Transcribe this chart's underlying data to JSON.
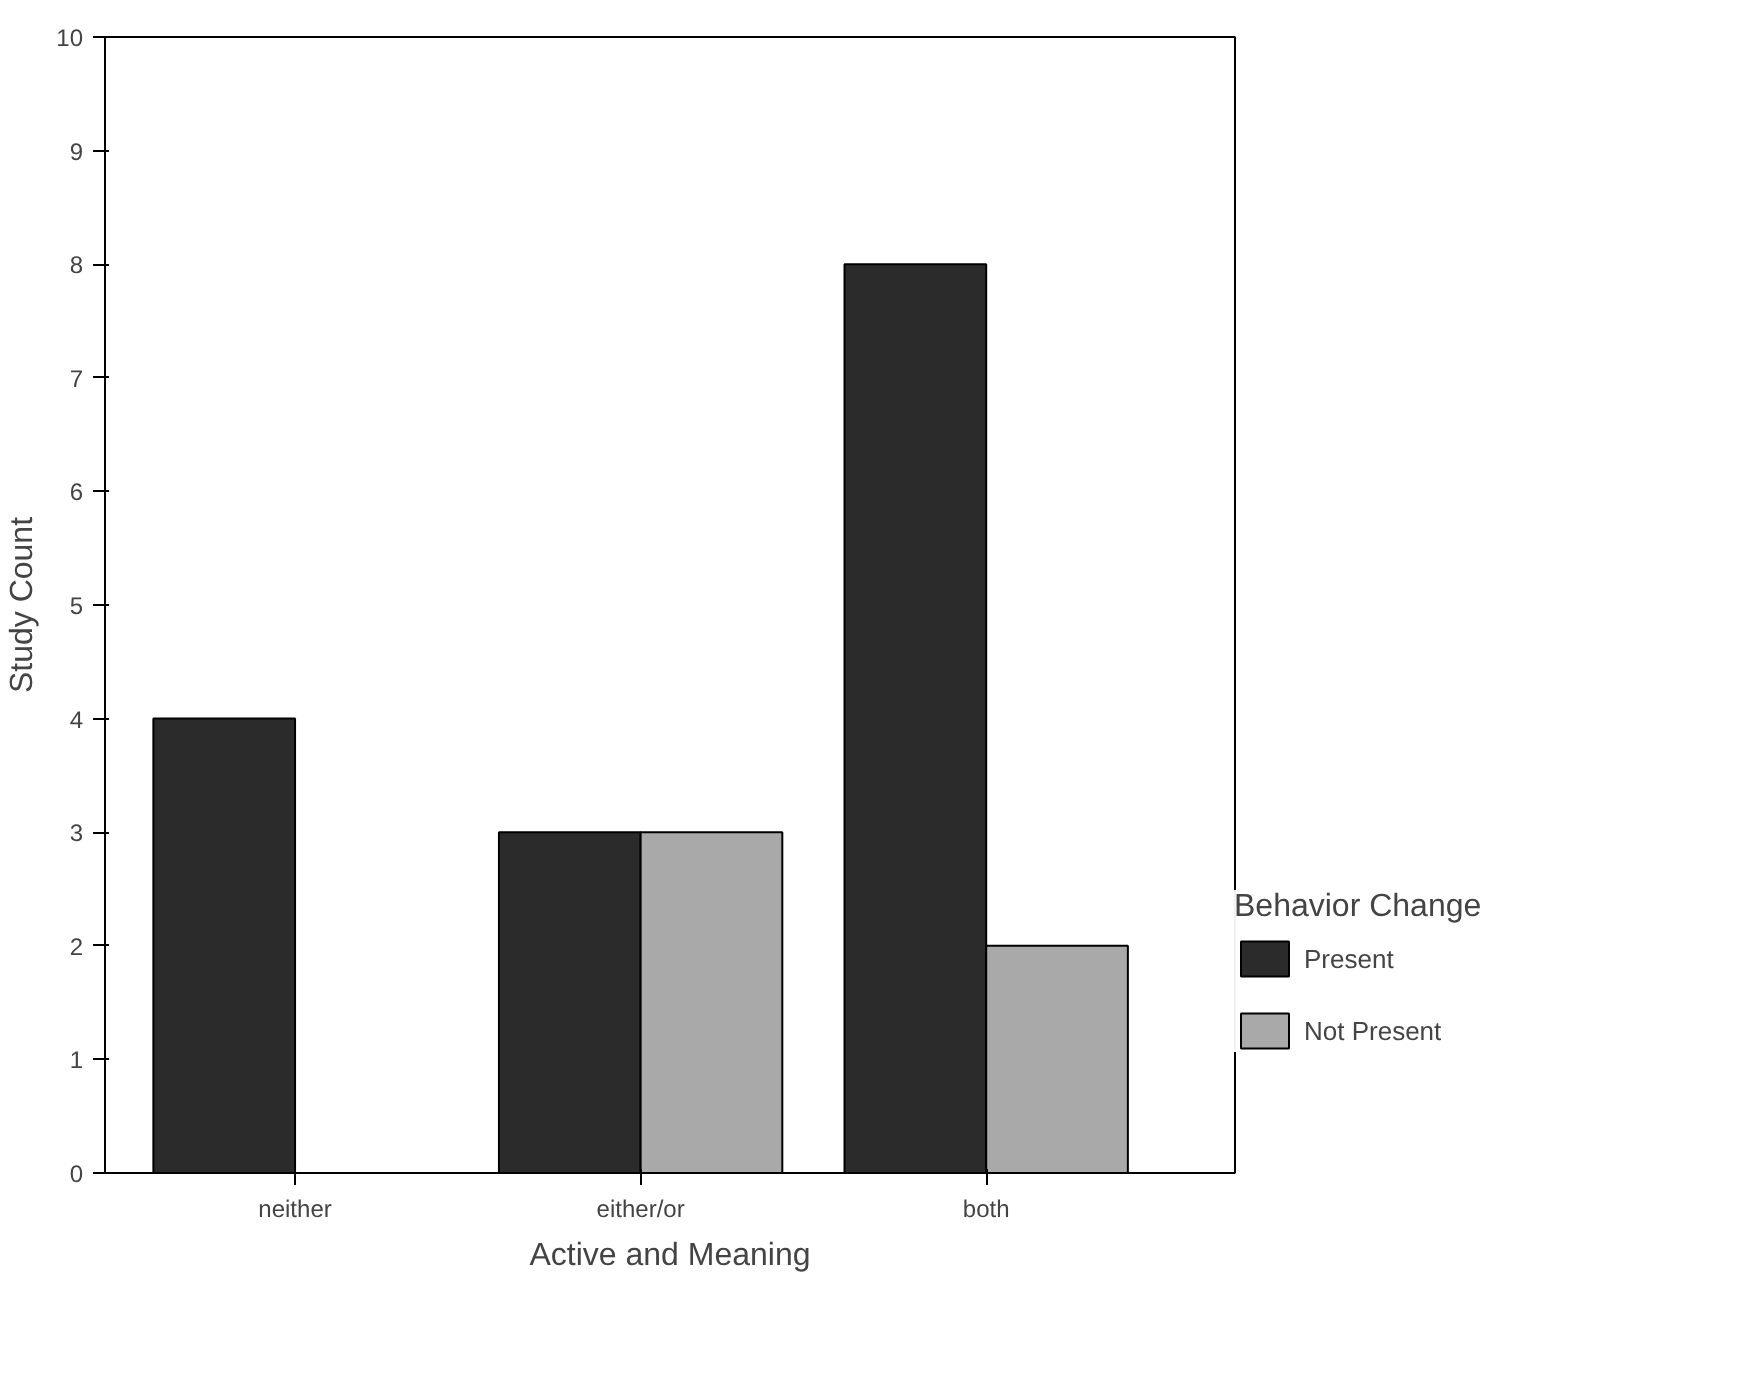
{
  "chart_data": {
    "type": "bar",
    "xlabel": "Active and Meaning",
    "ylabel": "Study Count",
    "legend_title": "Behavior Change",
    "categories": [
      "neither",
      "either/or",
      "both"
    ],
    "series": [
      {
        "name": "Present",
        "color": "#2b2b2b",
        "values": [
          4,
          3,
          8
        ]
      },
      {
        "name": "Not Present",
        "color": "#a9a9a9",
        "values": [
          null,
          3,
          2
        ]
      }
    ],
    "ylim": [
      0,
      10
    ],
    "yticks": [
      0,
      1,
      2,
      3,
      4,
      5,
      6,
      7,
      8,
      9,
      10
    ],
    "grid": false,
    "legend": "right"
  }
}
